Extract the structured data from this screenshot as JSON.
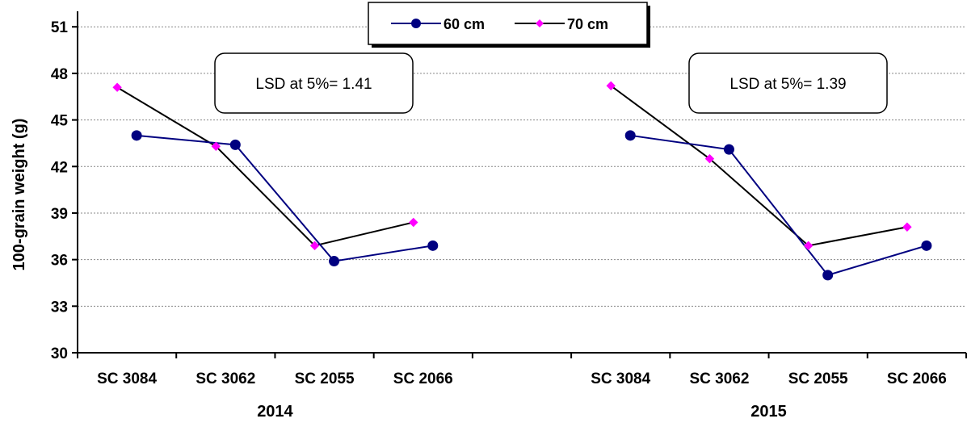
{
  "chart_data": {
    "type": "line",
    "ylabel": "100-grain weight (g)",
    "ylim": [
      30,
      52
    ],
    "yticks": [
      30,
      33,
      36,
      39,
      42,
      45,
      48,
      51
    ],
    "grid": true,
    "legend_position": "top-center",
    "groups": [
      {
        "label": "2014",
        "categories": [
          "SC 3084",
          "SC 3062",
          "SC 2055",
          "SC 2066"
        ],
        "series": [
          {
            "name": "60 cm",
            "color": "#000080",
            "marker": "circle",
            "values": [
              44.0,
              43.4,
              35.9,
              36.9
            ]
          },
          {
            "name": "70 cm",
            "color": "#ff00ff",
            "line_color": "#000000",
            "marker": "diamond",
            "values": [
              47.1,
              43.3,
              36.9,
              38.4
            ]
          }
        ],
        "annotation": "LSD at 5%= 1.41"
      },
      {
        "label": "2015",
        "categories": [
          "SC 3084",
          "SC 3062",
          "SC 2055",
          "SC 2066"
        ],
        "series": [
          {
            "name": "60 cm",
            "color": "#000080",
            "marker": "circle",
            "values": [
              44.0,
              43.1,
              35.0,
              36.9
            ]
          },
          {
            "name": "70 cm",
            "color": "#ff00ff",
            "line_color": "#000000",
            "marker": "diamond",
            "values": [
              47.2,
              42.5,
              36.9,
              38.1
            ]
          }
        ],
        "annotation": "LSD at 5%= 1.39"
      }
    ],
    "legend": [
      {
        "name": "60 cm",
        "marker": "circle",
        "color": "#000080",
        "line_color": "#000080"
      },
      {
        "name": "70 cm",
        "marker": "diamond",
        "color": "#ff00ff",
        "line_color": "#000000"
      }
    ]
  }
}
